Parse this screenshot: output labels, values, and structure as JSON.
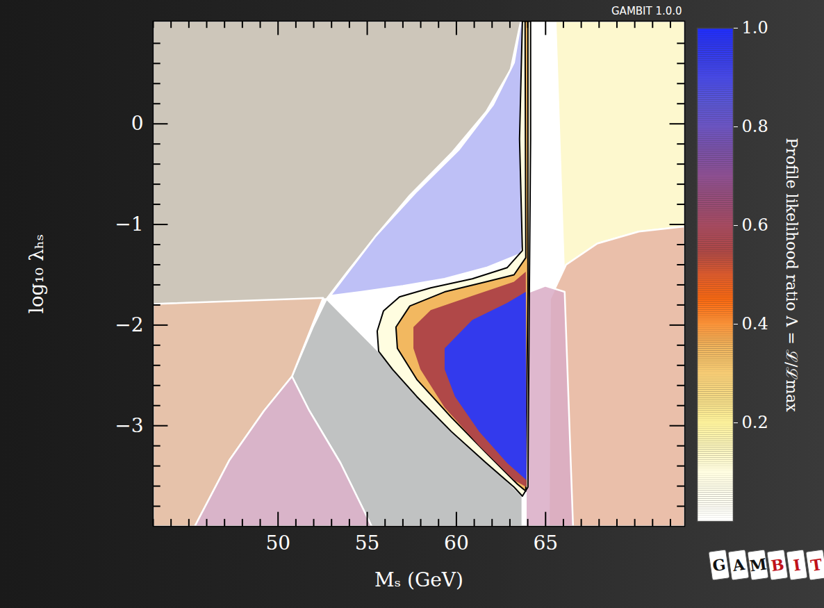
{
  "chart_data": {
    "type": "profile_likelihood",
    "title": "GAMBIT 1.0.0",
    "x_label": "Mₛ (GeV)",
    "y_label": "log₁₀ λₕₛ",
    "xlim": [
      43,
      72.8
    ],
    "ylim": [
      -4,
      1.02
    ],
    "xticks": [
      50,
      55,
      60,
      65
    ],
    "yticks": [
      -3,
      -2,
      -1,
      0
    ],
    "xminor": [
      43,
      44,
      45,
      46,
      47,
      48,
      49,
      51,
      52,
      53,
      54,
      56,
      57,
      58,
      59,
      61,
      62,
      63,
      64,
      66,
      67,
      68,
      69,
      70,
      71,
      72
    ],
    "yminor": [
      -3.8,
      -3.6,
      -3.4,
      -3.2,
      -2.8,
      -2.6,
      -2.4,
      -2.2,
      -1.8,
      -1.6,
      -1.4,
      -1.2,
      -0.8,
      -0.6,
      -0.4,
      -0.2,
      0.2,
      0.4,
      0.6,
      0.8
    ],
    "regions": [
      {
        "color": "#c4bcae",
        "x": [
          43,
          63.62,
          63.54,
          63.04,
          61.67,
          59.73,
          57.39,
          55.45,
          53.89,
          52.72,
          43
        ],
        "y": [
          1.02,
          1.02,
          0.96,
          0.54,
          0.12,
          -0.29,
          -0.71,
          -1.12,
          -1.47,
          -1.74,
          -1.79
        ]
      },
      {
        "color": "#b3b5f4",
        "x": [
          52.92,
          55.45,
          57.78,
          60.12,
          62.06,
          63.23,
          63.62,
          63.93,
          63.93,
          63.93,
          63.62,
          61.67,
          59.34,
          57.0,
          54.67
        ],
        "y": [
          -1.71,
          -1.12,
          -0.67,
          -0.26,
          0.19,
          0.61,
          1.02,
          1.02,
          0.54,
          -1.05,
          -1.29,
          -1.43,
          -1.54,
          -1.61,
          -1.67
        ]
      },
      {
        "color": "#b5b7b7",
        "x": [
          52.72,
          63.7,
          63.7,
          55.25,
          53.5,
          51.75,
          50.78,
          51.95
        ],
        "y": [
          -1.74,
          -3.7,
          -4,
          -4,
          -3.37,
          -2.85,
          -2.51,
          -2.02
        ]
      },
      {
        "color": "#e2b79b",
        "x": [
          43,
          52.53,
          50.78,
          49.22,
          47.28,
          45.33,
          43
        ],
        "y": [
          -1.79,
          -1.73,
          -2.51,
          -2.85,
          -3.34,
          -4,
          -4
        ]
      },
      {
        "color": "#d2a7c0",
        "x": [
          45.33,
          47.28,
          49.22,
          50.78,
          51.75,
          53.5,
          55.25
        ],
        "y": [
          -4,
          -3.34,
          -2.85,
          -2.51,
          -2.85,
          -3.37,
          -4
        ]
      },
      {
        "color": "#fdf7c6",
        "x": [
          65.56,
          72.8,
          72.8,
          70.23,
          67.9,
          66.15,
          66.07
        ],
        "y": [
          1.02,
          1.02,
          -1.02,
          -1.07,
          -1.19,
          -1.4,
          -1.67
        ]
      },
      {
        "color": "#e6b49b",
        "x": [
          72.8,
          70.23,
          67.9,
          66.15,
          65.25,
          65.18,
          72.8
        ],
        "y": [
          -1.02,
          -1.07,
          -1.19,
          -1.4,
          -1.74,
          -4,
          -4
        ]
      },
      {
        "color": "#d9abc6",
        "x": [
          63.89,
          64.09,
          64.98,
          66.07,
          66.54,
          63.89
        ],
        "y": [
          -1.74,
          -1.67,
          -1.61,
          -1.67,
          -4,
          -4
        ]
      }
    ],
    "likelihood_regions": [
      {
        "level": 0.1,
        "line_style": "solid",
        "x": [
          63.7,
          63.54,
          63.7,
          62.84,
          60.89,
          58.56,
          56.81,
          55.91,
          55.56,
          55.64,
          56.42,
          57.78,
          59.73,
          61.67,
          63.23,
          63.7,
          64.01,
          64.09,
          64.16,
          64.16
        ],
        "y": [
          1.02,
          -0.15,
          -1.26,
          -1.43,
          -1.54,
          -1.63,
          -1.72,
          -1.86,
          -2.06,
          -2.26,
          -2.44,
          -2.71,
          -3.06,
          -3.37,
          -3.61,
          -3.7,
          -3.61,
          -1.67,
          -0.15,
          1.02
        ]
      },
      {
        "level": 0.35,
        "line_style": "solid",
        "x": [
          63.85,
          63.89,
          63.23,
          61.67,
          59.34,
          57.39,
          56.61,
          56.69,
          57.78,
          59.73,
          61.67,
          63.42,
          63.89,
          64.01,
          64.01
        ],
        "y": [
          1.02,
          -1.33,
          -1.5,
          -1.57,
          -1.67,
          -1.81,
          -2.02,
          -2.23,
          -2.54,
          -2.92,
          -3.27,
          -3.58,
          -3.65,
          -1.67,
          1.02
        ]
      },
      {
        "level": 0.55,
        "x": [
          57.59,
          58.56,
          60.89,
          63.23,
          63.89,
          63.93,
          63.23,
          61.28,
          59.34,
          57.98,
          57.59
        ],
        "y": [
          -2.02,
          -1.85,
          -1.71,
          -1.57,
          -1.47,
          -3.61,
          -3.54,
          -3.2,
          -2.82,
          -2.44,
          -2.23
        ]
      },
      {
        "level": 0.95,
        "x": [
          59.34,
          60.89,
          62.84,
          63.89,
          63.93,
          62.84,
          61.28,
          59.92,
          59.34
        ],
        "y": [
          -2.23,
          -1.95,
          -1.78,
          -1.67,
          -3.54,
          -3.37,
          -3.06,
          -2.71,
          -2.44
        ]
      }
    ],
    "colorbar": {
      "label": "Profile likelihood ratio Λ = ℒ/ℒmax",
      "range": [
        0,
        1
      ],
      "ticks": [
        0.2,
        0.4,
        0.6,
        0.8,
        {
          "value": 1,
          "label": "1.0"
        }
      ],
      "stops": [
        0,
        0.1,
        0.2,
        0.35,
        0.45,
        0.55,
        0.7,
        0.85,
        1
      ],
      "colors": [
        "#ffffff",
        "#fffde0",
        "#fbf09a",
        "#f2b860",
        "#ff6a10",
        "#b04848",
        "#8c4f90",
        "#5a56d8",
        "#1f2cf8"
      ]
    },
    "logo": "GAMBIT"
  }
}
